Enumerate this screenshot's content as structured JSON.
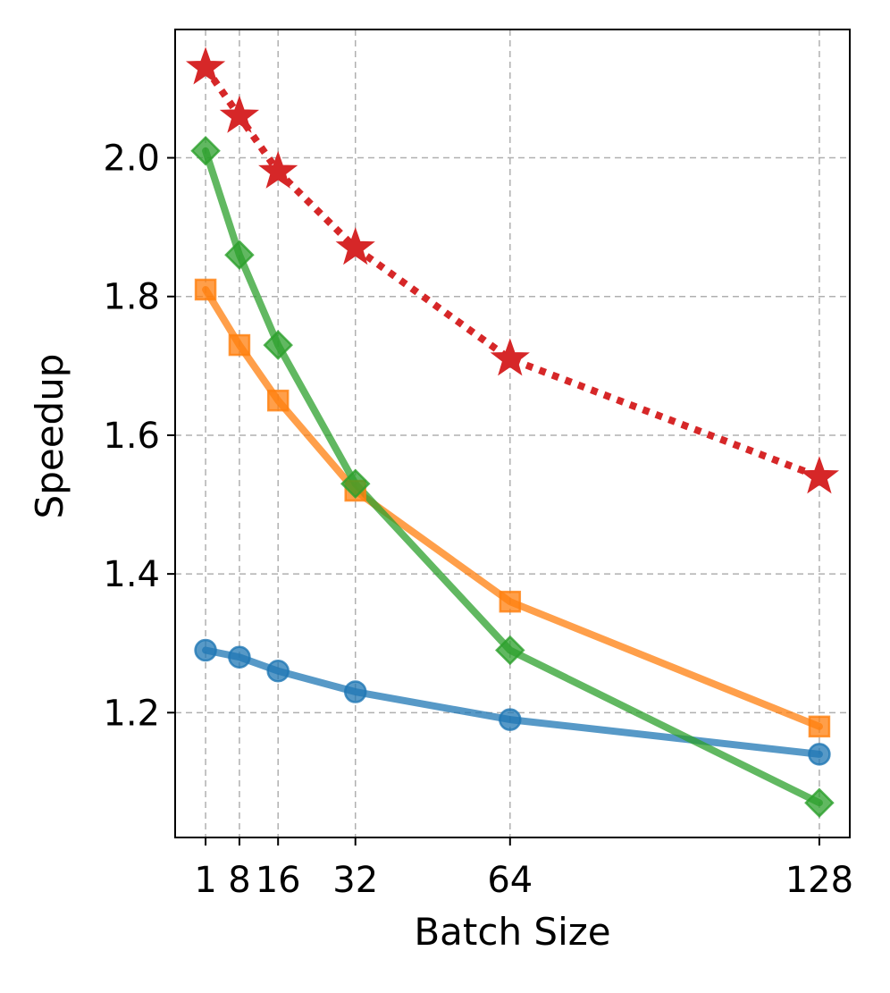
{
  "chart_data": {
    "type": "line",
    "title": "",
    "xlabel": "Batch Size",
    "ylabel": "Speedup",
    "x": [
      1,
      8,
      16,
      32,
      64,
      128
    ],
    "x_tick_labels": [
      "1",
      "8",
      "16",
      "32",
      "64",
      "128"
    ],
    "y_ticks": [
      1.2,
      1.4,
      1.6,
      1.8,
      2.0
    ],
    "y_tick_labels": [
      "1.2",
      "1.4",
      "1.6",
      "1.8",
      "2.0"
    ],
    "xlim": [
      -5.3,
      134.3
    ],
    "ylim": [
      1.02,
      2.185
    ],
    "grid": true,
    "legend": null,
    "series": [
      {
        "name": "series-blue-circle",
        "color": "#1f77b4",
        "marker": "circle",
        "linestyle": "solid",
        "values": [
          1.29,
          1.28,
          1.26,
          1.23,
          1.19,
          1.14
        ]
      },
      {
        "name": "series-orange-square",
        "color": "#ff7f0e",
        "marker": "square",
        "linestyle": "solid",
        "values": [
          1.81,
          1.73,
          1.65,
          1.52,
          1.36,
          1.18
        ]
      },
      {
        "name": "series-green-diamond",
        "color": "#2ca02c",
        "marker": "diamond",
        "linestyle": "solid",
        "values": [
          2.01,
          1.86,
          1.73,
          1.53,
          1.29,
          1.07
        ]
      },
      {
        "name": "series-red-star",
        "color": "#d62728",
        "marker": "star",
        "linestyle": "dotted",
        "values": [
          2.13,
          2.06,
          1.98,
          1.87,
          1.71,
          1.54
        ]
      }
    ]
  }
}
